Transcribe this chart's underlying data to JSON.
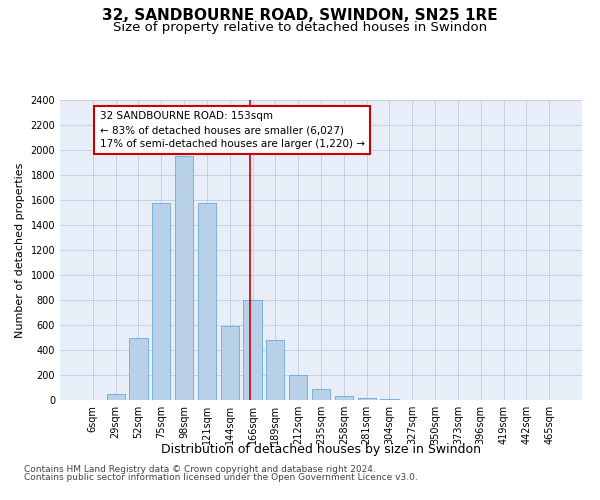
{
  "title": "32, SANDBOURNE ROAD, SWINDON, SN25 1RE",
  "subtitle": "Size of property relative to detached houses in Swindon",
  "xlabel": "Distribution of detached houses by size in Swindon",
  "ylabel": "Number of detached properties",
  "footer1": "Contains HM Land Registry data © Crown copyright and database right 2024.",
  "footer2": "Contains public sector information licensed under the Open Government Licence v3.0.",
  "bar_labels": [
    "6sqm",
    "29sqm",
    "52sqm",
    "75sqm",
    "98sqm",
    "121sqm",
    "144sqm",
    "166sqm",
    "189sqm",
    "212sqm",
    "235sqm",
    "258sqm",
    "281sqm",
    "304sqm",
    "327sqm",
    "350sqm",
    "373sqm",
    "396sqm",
    "419sqm",
    "442sqm",
    "465sqm"
  ],
  "bar_values": [
    0,
    50,
    500,
    1580,
    1950,
    1580,
    590,
    800,
    480,
    200,
    90,
    30,
    20,
    5,
    0,
    0,
    0,
    0,
    0,
    0,
    0
  ],
  "bar_color": "#b8d0e8",
  "bar_edge_color": "#5a9fd4",
  "bar_edge_width": 0.5,
  "vline_color": "#cc0000",
  "annotation_text": "32 SANDBOURNE ROAD: 153sqm\n← 83% of detached houses are smaller (6,027)\n17% of semi-detached houses are larger (1,220) →",
  "annotation_box_color": "#ffffff",
  "annotation_box_edge": "#cc0000",
  "ylim": [
    0,
    2400
  ],
  "yticks": [
    0,
    200,
    400,
    600,
    800,
    1000,
    1200,
    1400,
    1600,
    1800,
    2000,
    2200,
    2400
  ],
  "bg_color": "#e8eef8",
  "title_fontsize": 11,
  "subtitle_fontsize": 9.5,
  "xlabel_fontsize": 9,
  "ylabel_fontsize": 8,
  "tick_fontsize": 7,
  "annotation_fontsize": 7.5,
  "footer_fontsize": 6.5
}
